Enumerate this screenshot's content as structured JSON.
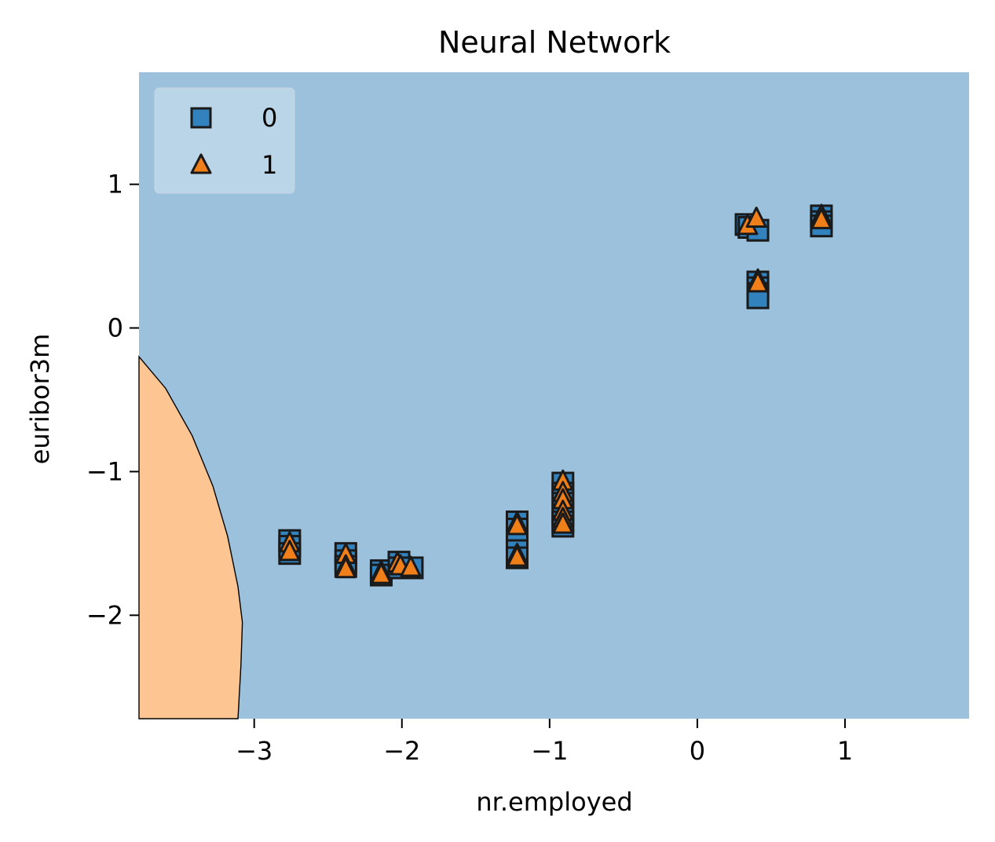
{
  "chart_data": {
    "type": "scatter",
    "title": "Neural Network",
    "xlabel": "nr.employed",
    "ylabel": "euribor3m",
    "xlim": [
      -3.78,
      1.84
    ],
    "ylim": [
      -2.72,
      1.78
    ],
    "xticks": [
      -3,
      -2,
      -1,
      0,
      1
    ],
    "yticks": [
      -2,
      -1,
      0,
      1
    ],
    "xtick_labels": [
      "−3",
      "−2",
      "−1",
      "0",
      "1"
    ],
    "ytick_labels": [
      "−2",
      "−1",
      "0",
      "1"
    ],
    "grid": false,
    "legend": {
      "placement": "top-left",
      "entries": [
        {
          "label": "0",
          "marker": "square",
          "color": "#3282bd"
        },
        {
          "label": "1",
          "marker": "triangle",
          "color": "#f07f1a"
        }
      ]
    },
    "regions": {
      "class0_color": "#9bc1dd",
      "class1_color": "#fdc591",
      "class1_boundary": [
        [
          -3.78,
          -0.2
        ],
        [
          -3.6,
          -0.42
        ],
        [
          -3.42,
          -0.75
        ],
        [
          -3.28,
          -1.1
        ],
        [
          -3.18,
          -1.45
        ],
        [
          -3.11,
          -1.8
        ],
        [
          -3.08,
          -2.05
        ],
        [
          -3.09,
          -2.35
        ],
        [
          -3.11,
          -2.72
        ]
      ]
    },
    "series": [
      {
        "name": "0",
        "marker": "square",
        "color": "#3282bd",
        "points": [
          [
            -2.76,
            -1.48
          ],
          [
            -2.76,
            -1.52
          ],
          [
            -2.76,
            -1.57
          ],
          [
            -2.38,
            -1.57
          ],
          [
            -2.38,
            -1.62
          ],
          [
            -2.38,
            -1.66
          ],
          [
            -2.14,
            -1.69
          ],
          [
            -2.14,
            -1.72
          ],
          [
            -2.02,
            -1.63
          ],
          [
            -2.02,
            -1.67
          ],
          [
            -1.93,
            -1.67
          ],
          [
            -1.22,
            -1.35
          ],
          [
            -1.22,
            -1.4
          ],
          [
            -1.22,
            -1.48
          ],
          [
            -1.22,
            -1.55
          ],
          [
            -1.22,
            -1.6
          ],
          [
            -0.91,
            -1.08
          ],
          [
            -0.91,
            -1.15
          ],
          [
            -0.91,
            -1.22
          ],
          [
            -0.91,
            -1.3
          ],
          [
            -0.91,
            -1.35
          ],
          [
            -0.91,
            -1.38
          ],
          [
            0.33,
            0.72
          ],
          [
            0.35,
            0.7
          ],
          [
            0.41,
            0.68
          ],
          [
            0.41,
            0.32
          ],
          [
            0.41,
            0.28
          ],
          [
            0.41,
            0.24
          ],
          [
            0.41,
            0.21
          ],
          [
            0.84,
            0.78
          ],
          [
            0.84,
            0.74
          ],
          [
            0.84,
            0.71
          ]
        ]
      },
      {
        "name": "1",
        "marker": "triangle",
        "color": "#f07f1a",
        "points": [
          [
            -2.76,
            -1.5
          ],
          [
            -2.76,
            -1.56
          ],
          [
            -2.38,
            -1.58
          ],
          [
            -2.38,
            -1.66
          ],
          [
            -2.38,
            -1.68
          ],
          [
            -2.14,
            -1.7
          ],
          [
            -2.14,
            -1.72
          ],
          [
            -2.03,
            -1.64
          ],
          [
            -2.01,
            -1.66
          ],
          [
            -1.94,
            -1.67
          ],
          [
            -1.22,
            -1.36
          ],
          [
            -1.22,
            -1.38
          ],
          [
            -1.22,
            -1.58
          ],
          [
            -1.22,
            -1.6
          ],
          [
            -0.91,
            -1.07
          ],
          [
            -0.91,
            -1.15
          ],
          [
            -0.91,
            -1.2
          ],
          [
            -0.91,
            -1.28
          ],
          [
            -0.91,
            -1.33
          ],
          [
            -0.91,
            -1.37
          ],
          [
            0.34,
            0.71
          ],
          [
            0.4,
            0.76
          ],
          [
            0.41,
            0.33
          ],
          [
            0.41,
            0.31
          ],
          [
            0.84,
            0.78
          ],
          [
            0.84,
            0.75
          ]
        ]
      }
    ]
  }
}
